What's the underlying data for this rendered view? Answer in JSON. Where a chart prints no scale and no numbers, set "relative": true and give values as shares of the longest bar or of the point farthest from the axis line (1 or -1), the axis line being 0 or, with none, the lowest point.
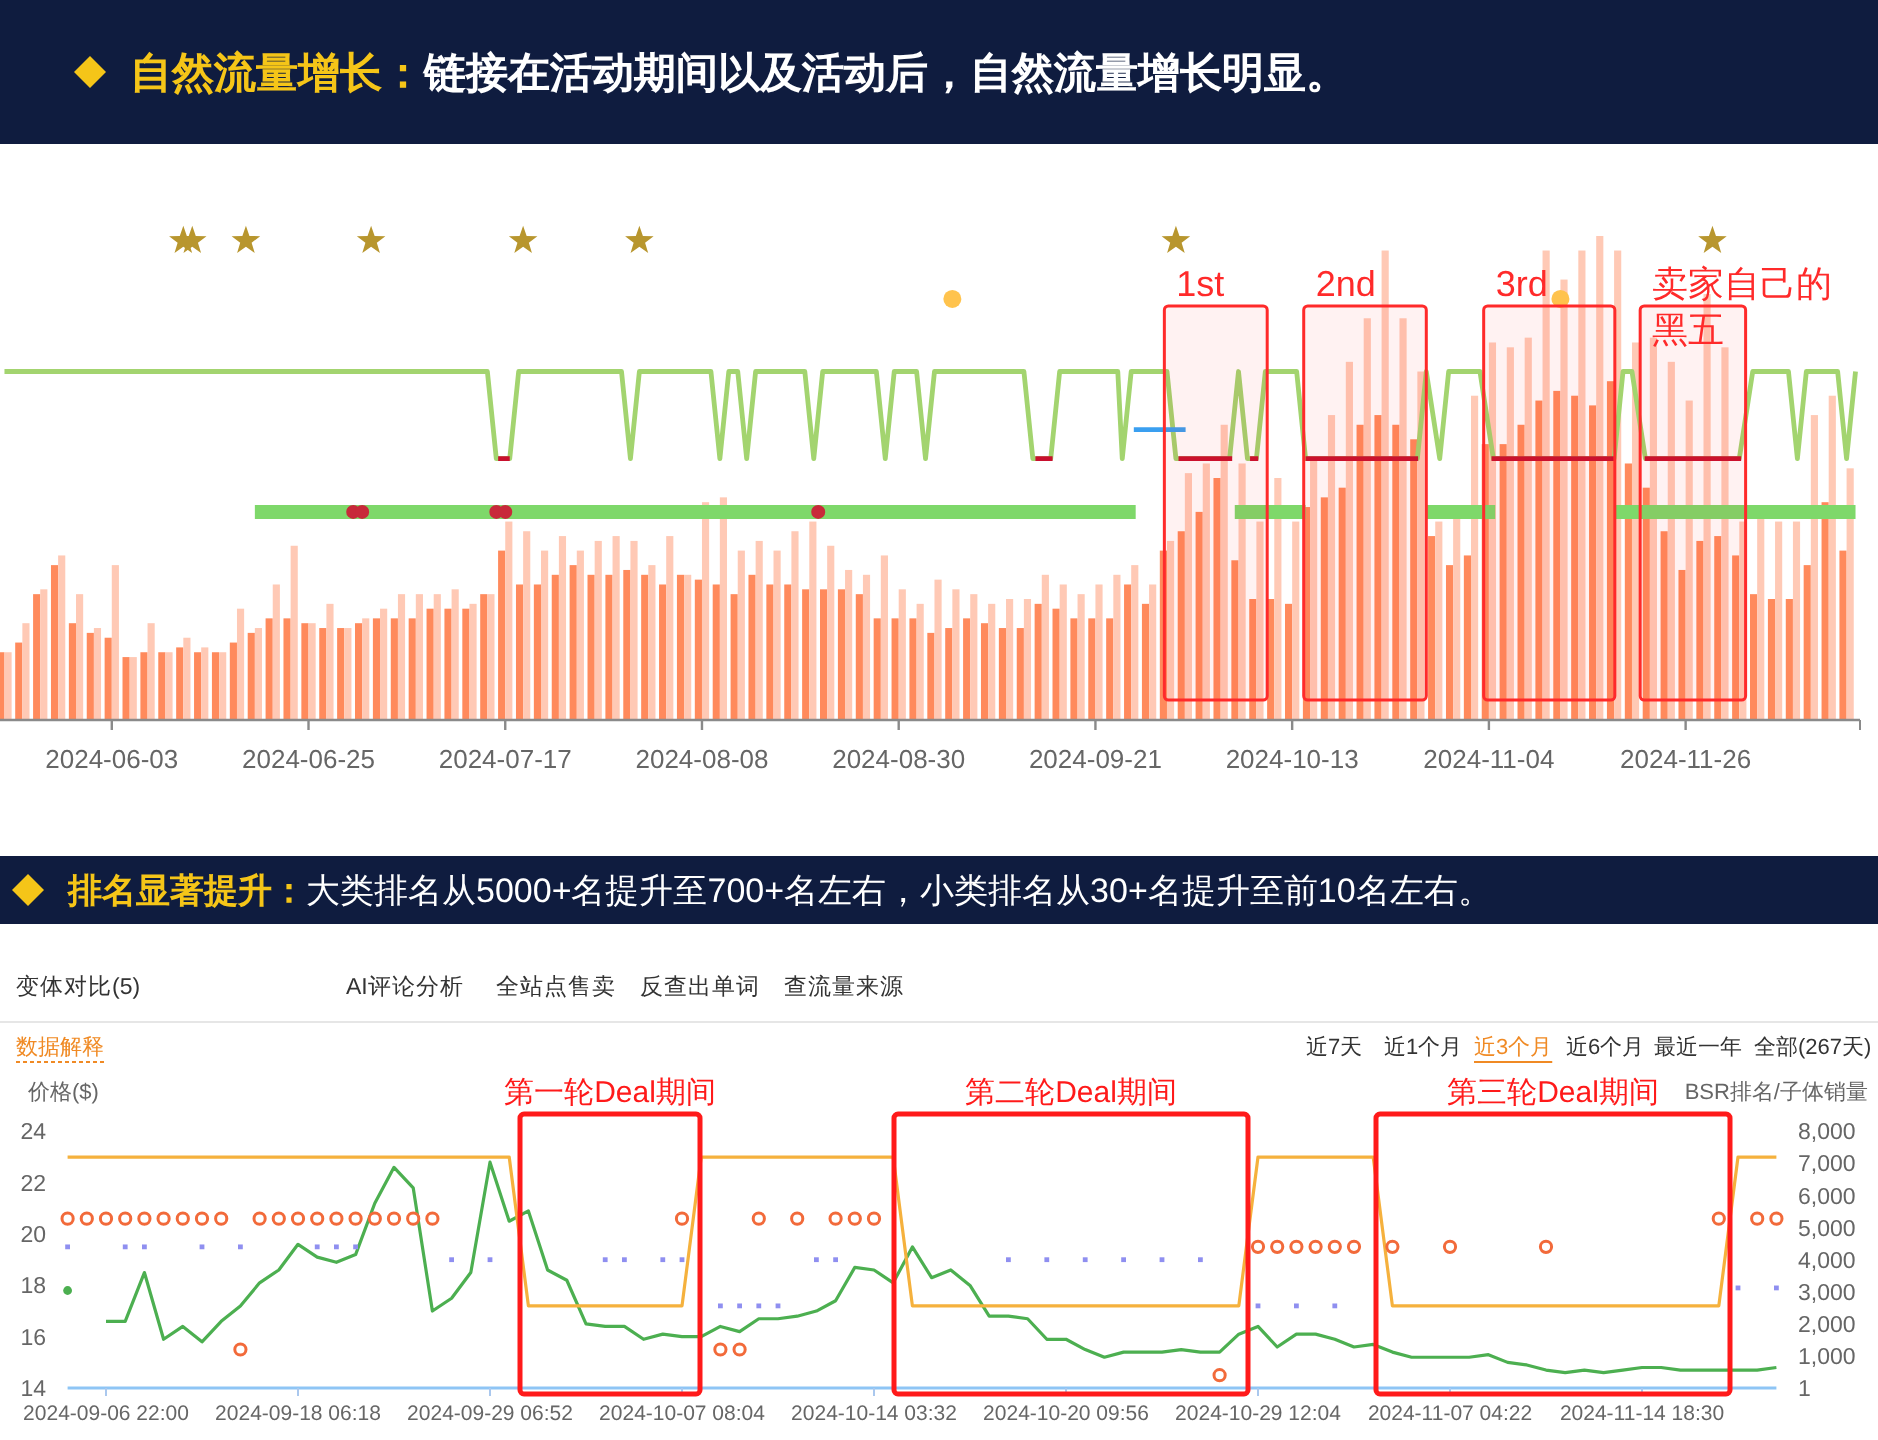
{
  "chart_data": [
    {
      "type": "bar",
      "title": "自然流量增长：",
      "subtitle": "链接在活动期间以及活动后，自然流量增长明显。",
      "relative": true,
      "x": [
        "2024-05-22",
        "2024-05-24",
        "2024-05-26",
        "2024-05-28",
        "2024-05-30",
        "2024-06-01",
        "2024-06-03",
        "2024-06-05",
        "2024-06-07",
        "2024-06-09",
        "2024-06-11",
        "2024-06-13",
        "2024-06-15",
        "2024-06-17",
        "2024-06-19",
        "2024-06-21",
        "2024-06-23",
        "2024-06-25",
        "2024-06-27",
        "2024-06-29",
        "2024-07-01",
        "2024-07-03",
        "2024-07-05",
        "2024-07-07",
        "2024-07-09",
        "2024-07-11",
        "2024-07-13",
        "2024-07-15",
        "2024-07-17",
        "2024-07-19",
        "2024-07-21",
        "2024-07-23",
        "2024-07-25",
        "2024-07-27",
        "2024-07-29",
        "2024-07-31",
        "2024-08-02",
        "2024-08-04",
        "2024-08-06",
        "2024-08-08",
        "2024-08-10",
        "2024-08-12",
        "2024-08-14",
        "2024-08-16",
        "2024-08-18",
        "2024-08-20",
        "2024-08-22",
        "2024-08-24",
        "2024-08-26",
        "2024-08-28",
        "2024-08-30",
        "2024-09-01",
        "2024-09-03",
        "2024-09-05",
        "2024-09-07",
        "2024-09-09",
        "2024-09-11",
        "2024-09-13",
        "2024-09-15",
        "2024-09-17",
        "2024-09-19",
        "2024-09-21",
        "2024-09-23",
        "2024-09-25",
        "2024-09-27",
        "2024-09-29",
        "2024-10-01",
        "2024-10-03",
        "2024-10-05",
        "2024-10-07",
        "2024-10-09",
        "2024-10-11",
        "2024-10-13",
        "2024-10-15",
        "2024-10-17",
        "2024-10-19",
        "2024-10-21",
        "2024-10-23",
        "2024-10-25",
        "2024-10-27",
        "2024-10-29",
        "2024-10-31",
        "2024-11-02",
        "2024-11-04",
        "2024-11-06",
        "2024-11-08",
        "2024-11-10",
        "2024-11-12",
        "2024-11-14",
        "2024-11-16",
        "2024-11-18",
        "2024-11-20",
        "2024-11-22",
        "2024-11-24",
        "2024-11-26",
        "2024-11-28",
        "2024-11-30",
        "2024-12-02",
        "2024-12-04",
        "2024-12-06",
        "2024-12-08",
        "2024-12-10",
        "2024-12-12",
        "2024-12-14"
      ],
      "xlim": [
        "2024-05-21T12:00",
        "2024-12-15T12:00"
      ],
      "xticks": [
        "2024-06-03",
        "2024-06-25",
        "2024-07-17",
        "2024-08-08",
        "2024-08-30",
        "2024-09-21",
        "2024-10-13",
        "2024-11-04",
        "2024-11-26"
      ],
      "series": [
        {
          "color": "#ff8a5c",
          "values": [
            0.14,
            0.16,
            0.26,
            0.32,
            0.2,
            0.18,
            0.17,
            0.13,
            0.14,
            0.14,
            0.15,
            0.14,
            0.14,
            0.16,
            0.18,
            0.21,
            0.21,
            0.2,
            0.19,
            0.19,
            0.2,
            0.21,
            0.21,
            0.21,
            0.23,
            0.23,
            0.23,
            0.26,
            0.35,
            0.28,
            0.28,
            0.3,
            0.32,
            0.3,
            0.3,
            0.31,
            0.3,
            0.28,
            0.3,
            0.29,
            0.28,
            0.26,
            0.3,
            0.28,
            0.28,
            0.27,
            0.27,
            0.27,
            0.26,
            0.21,
            0.21,
            0.21,
            0.18,
            0.19,
            0.21,
            0.2,
            0.19,
            0.19,
            0.24,
            0.23,
            0.21,
            0.21,
            0.21,
            0.28,
            0.24,
            0.35,
            0.39,
            0.43,
            0.5,
            0.33,
            0.25,
            0.25,
            0.24,
            0.44,
            0.46,
            0.48,
            0.61,
            0.63,
            0.61,
            0.58,
            0.38,
            0.32,
            0.34,
            0.57,
            0.57,
            0.61,
            0.66,
            0.68,
            0.67,
            0.65,
            0.7,
            0.53,
            0.48,
            0.39,
            0.31,
            0.37,
            0.38,
            0.34,
            0.26,
            0.25,
            0.25,
            0.32,
            0.45,
            0.35
          ]
        },
        {
          "color": "#ffc9b5",
          "values": [
            0.14,
            0.2,
            0.27,
            0.34,
            0.26,
            0.19,
            0.32,
            0.13,
            0.2,
            0.14,
            0.17,
            0.15,
            0.14,
            0.23,
            0.19,
            0.28,
            0.36,
            0.2,
            0.24,
            0.19,
            0.21,
            0.23,
            0.26,
            0.26,
            0.26,
            0.27,
            0.24,
            0.26,
            0.41,
            0.39,
            0.35,
            0.38,
            0.35,
            0.37,
            0.38,
            0.37,
            0.32,
            0.38,
            0.3,
            0.45,
            0.46,
            0.35,
            0.37,
            0.35,
            0.39,
            0.41,
            0.36,
            0.31,
            0.3,
            0.34,
            0.27,
            0.24,
            0.29,
            0.27,
            0.26,
            0.24,
            0.25,
            0.25,
            0.3,
            0.28,
            0.26,
            0.28,
            0.3,
            0.32,
            0.28,
            0.37,
            0.51,
            0.53,
            0.61,
            0.53,
            0.41,
            0.5,
            0.41,
            0.54,
            0.63,
            0.74,
            0.83,
            0.97,
            0.83,
            0.72,
            0.41,
            0.42,
            0.67,
            0.78,
            0.77,
            0.79,
            0.97,
            0.91,
            0.97,
            1.0,
            0.97,
            0.78,
            0.79,
            0.74,
            0.66,
            0.88,
            0.77,
            0.41,
            0.42,
            0.41,
            0.41,
            0.63,
            0.67,
            0.52
          ]
        },
        {
          "type": "line",
          "color": "#a3d46f",
          "x": [
            "2024-05-22",
            "2024-07-15",
            "2024-07-16",
            "2024-07-17T12:00",
            "2024-07-18T12:00",
            "2024-07-30",
            "2024-07-31",
            "2024-08-01",
            "2024-08-09",
            "2024-08-10",
            "2024-08-11",
            "2024-08-12",
            "2024-08-13",
            "2024-08-14",
            "2024-08-19T12:00",
            "2024-08-20T12:00",
            "2024-08-21T12:00",
            "2024-08-27T12:00",
            "2024-08-28T12:00",
            "2024-08-29T12:00",
            "2024-09-01",
            "2024-09-02",
            "2024-09-03",
            "2024-09-13",
            "2024-09-14",
            "2024-09-16",
            "2024-09-17",
            "2024-09-23T12:00",
            "2024-09-24",
            "2024-09-25",
            "2024-09-29",
            "2024-09-30",
            "2024-10-06",
            "2024-10-07",
            "2024-10-08",
            "2024-10-09",
            "2024-10-10",
            "2024-10-13T12:00",
            "2024-10-14T12:00",
            "2024-10-27",
            "2024-10-28",
            "2024-10-29T12:00",
            "2024-10-30T12:00",
            "2024-11-03",
            "2024-11-04T12:00",
            "2024-11-18",
            "2024-11-19",
            "2024-11-20",
            "2024-11-21T12:00",
            "2024-12-02",
            "2024-12-03T12:00",
            "2024-12-07T12:00",
            "2024-12-08T12:00",
            "2024-12-09T12:00",
            "2024-12-13",
            "2024-12-14",
            "2024-12-15"
          ],
          "values": [
            0.72,
            0.72,
            0.54,
            0.54,
            0.72,
            0.72,
            0.54,
            0.72,
            0.72,
            0.54,
            0.72,
            0.72,
            0.54,
            0.72,
            0.72,
            0.54,
            0.72,
            0.72,
            0.54,
            0.72,
            0.72,
            0.54,
            0.72,
            0.72,
            0.54,
            0.54,
            0.72,
            0.72,
            0.54,
            0.72,
            0.72,
            0.54,
            0.54,
            0.72,
            0.54,
            0.54,
            0.72,
            0.72,
            0.54,
            0.54,
            0.72,
            0.54,
            0.72,
            0.72,
            0.54,
            0.54,
            0.72,
            0.72,
            0.54,
            0.54,
            0.72,
            0.72,
            0.54,
            0.72,
            0.72,
            0.54,
            0.72
          ]
        },
        {
          "type": "line",
          "color": "#7ed86a",
          "x": [
            "2024-06-19",
            "2024-09-25T12:00",
            "2024-10-01",
            "2024-10-06T14:00",
            "2024-10-14T12:00",
            "2024-10-20",
            "2024-10-28",
            "2024-11-04T17:00",
            "2024-11-10",
            "2024-11-18",
            "2024-12-15"
          ],
          "values": [
            0.43,
            0.43,
            null,
            0.43,
            0.43,
            null,
            0.43,
            0.43,
            null,
            0.43,
            0.43
          ]
        },
        {
          "type": "line",
          "color": "#c8102e",
          "x": [
            "2024-07-16T05:00",
            "2024-07-17T12:00",
            "2024-08-01",
            "2024-09-14T07:00",
            "2024-09-16T05:00",
            "2024-09-20",
            "2024-09-30T07:00",
            "2024-10-06T07:00",
            "2024-10-07T12:00",
            "2024-10-08T07:00",
            "2024-10-09T05:00",
            "2024-10-12",
            "2024-10-14T12:00",
            "2024-10-27T02:00",
            "2024-11-01",
            "2024-11-04T07:00",
            "2024-11-18T02:00",
            "2024-11-20",
            "2024-11-21T10:00",
            "2024-12-02T05:00"
          ],
          "values": [
            0.54,
            0.54,
            null,
            0.54,
            0.54,
            null,
            0.54,
            0.54,
            null,
            0.54,
            0.54,
            null,
            0.54,
            0.54,
            null,
            0.54,
            0.54,
            null,
            0.54,
            0.54
          ]
        },
        {
          "type": "line",
          "color": "#3a9ff0",
          "x": [
            "2024-09-25T07:00",
            "2024-10-01T02:00"
          ],
          "values": [
            0.6,
            0.6
          ]
        },
        {
          "type": "scatter",
          "marker": "star",
          "color": "#b8962e",
          "x": [
            "2024-06-11",
            "2024-06-12",
            "2024-06-18",
            "2024-07-02",
            "2024-07-19",
            "2024-08-01",
            "2024-09-30",
            "2024-11-29"
          ],
          "values": [
            0.99,
            0.99,
            0.99,
            0.99,
            0.99,
            0.99,
            0.99,
            0.99
          ]
        },
        {
          "type": "scatter",
          "marker": "circle",
          "color": "#ffc34d",
          "x": [
            "2024-09-05",
            "2024-11-12"
          ],
          "values": [
            0.87,
            0.87
          ]
        },
        {
          "type": "scatter",
          "marker": "circle",
          "color": "#c8293a",
          "x": [
            "2024-06-30",
            "2024-07-01",
            "2024-07-16",
            "2024-07-17",
            "2024-08-21"
          ],
          "values": [
            0.43,
            0.43,
            0.43,
            0.43,
            0.43
          ]
        }
      ],
      "bands": [
        {
          "axis": "x",
          "from": "2024-09-28T17:00",
          "to": "2024-10-10T05:00",
          "label": "1st",
          "color": "#ff2a2a"
        },
        {
          "axis": "x",
          "from": "2024-10-14T07:00",
          "to": "2024-10-28",
          "label": "2nd",
          "color": "#ff2a2a"
        },
        {
          "axis": "x",
          "from": "2024-11-03T10:00",
          "to": "2024-11-18T02:00",
          "label": "3rd",
          "color": "#ff2a2a"
        },
        {
          "axis": "x",
          "from": "2024-11-20T22:00",
          "to": "2024-12-02T17:00",
          "label": "卖家自己的黑五",
          "color": "#ff2a2a"
        }
      ]
    },
    {
      "type": "line",
      "title": "排名显著提升：",
      "subtitle": "大类排名从5000+名提升至700+名左右，小类排名从30+名提升至前10名左右。",
      "ylabel": "价格($)",
      "y2label": "BSR排名/子体销量",
      "categories": [
        null,
        null,
        "2024-09-06 22:00",
        null,
        null,
        null,
        null,
        null,
        null,
        null,
        null,
        null,
        "2024-09-18 06:18",
        null,
        null,
        null,
        null,
        null,
        null,
        null,
        null,
        null,
        "2024-09-29 06:52",
        null,
        null,
        null,
        null,
        null,
        null,
        null,
        null,
        null,
        "2024-10-07 08:04",
        null,
        null,
        null,
        null,
        null,
        null,
        null,
        null,
        null,
        "2024-10-14 03:32",
        null,
        null,
        null,
        null,
        null,
        null,
        null,
        null,
        null,
        "2024-10-20 09:56",
        null,
        null,
        null,
        null,
        null,
        null,
        null,
        null,
        null,
        "2024-10-29 12:04",
        null,
        null,
        null,
        null,
        null,
        null,
        null,
        null,
        null,
        "2024-11-07 04:22",
        null,
        null,
        null,
        null,
        null,
        null,
        null,
        null,
        null,
        "2024-11-14 18:30",
        null,
        null,
        null,
        null,
        null,
        null,
        null
      ],
      "ylim": [
        14,
        24
      ],
      "yticks": [
        14,
        16,
        18,
        20,
        22,
        24
      ],
      "y2lim": [
        1,
        8000
      ],
      "y2ticks": [
        1,
        {
          "value": 1000,
          "label": "1,000"
        },
        {
          "value": 2000,
          "label": "2,000"
        },
        {
          "value": 3000,
          "label": "3,000"
        },
        {
          "value": 4000,
          "label": "4,000"
        },
        {
          "value": 5000,
          "label": "5,000"
        },
        {
          "value": 6000,
          "label": "6,000"
        },
        {
          "value": 7000,
          "label": "7,000"
        },
        {
          "value": 8000,
          "label": "8,000"
        }
      ],
      "series": [
        {
          "axis": "y2",
          "color": "#4caf50",
          "values": [
            3040,
            null,
            2080,
            2080,
            3600,
            1520,
            1920,
            1440,
            2080,
            2560,
            3280,
            3680,
            4480,
            4080,
            3920,
            4160,
            5760,
            6880,
            6240,
            2400,
            2800,
            3600,
            7040,
            5200,
            5520,
            3680,
            3360,
            2000,
            1920,
            1920,
            1520,
            1680,
            1600,
            1600,
            1920,
            1760,
            2160,
            2160,
            2240,
            2400,
            2720,
            3760,
            3680,
            3280,
            4400,
            3440,
            3680,
            3200,
            2240,
            2240,
            2160,
            1520,
            1520,
            1200,
            960,
            1120,
            1120,
            1120,
            1200,
            1120,
            1120,
            1680,
            1920,
            1280,
            1680,
            1680,
            1520,
            1280,
            1360,
            1120,
            960,
            960,
            960,
            960,
            1040,
            800,
            720,
            560,
            480,
            560,
            480,
            560,
            640,
            640,
            560,
            560,
            560,
            560,
            560,
            640
          ]
        },
        {
          "color": "#f5b13d",
          "values": [
            23.0,
            23.0,
            23.0,
            23.0,
            23.0,
            23.0,
            23.0,
            23.0,
            23.0,
            23.0,
            23.0,
            23.0,
            23.0,
            23.0,
            23.0,
            23.0,
            23.0,
            23.0,
            23.0,
            23.0,
            23.0,
            23.0,
            23.0,
            23.0,
            17.2,
            17.2,
            17.2,
            17.2,
            17.2,
            17.2,
            17.2,
            17.2,
            17.2,
            23.0,
            23.0,
            23.0,
            23.0,
            23.0,
            23.0,
            23.0,
            23.0,
            23.0,
            23.0,
            23.0,
            17.2,
            17.2,
            17.2,
            17.2,
            17.2,
            17.2,
            17.2,
            17.2,
            17.2,
            17.2,
            17.2,
            17.2,
            17.2,
            17.2,
            17.2,
            17.2,
            17.2,
            17.2,
            23.0,
            23.0,
            23.0,
            23.0,
            23.0,
            23.0,
            23.0,
            17.2,
            17.2,
            17.2,
            17.2,
            17.2,
            17.2,
            17.2,
            17.2,
            17.2,
            17.2,
            17.2,
            17.2,
            17.2,
            17.2,
            17.2,
            17.2,
            17.2,
            17.2,
            23.0,
            23.0,
            23.0
          ]
        },
        {
          "color": "#8ec5f5",
          "values": [
            14.0,
            14.0,
            14.0,
            14.0,
            14.0,
            14.0,
            14.0,
            14.0,
            14.0,
            14.0,
            14.0,
            14.0,
            14.0,
            14.0,
            14.0,
            14.0,
            14.0,
            14.0,
            14.0,
            14.0,
            14.0,
            14.0,
            14.0,
            14.0,
            14.0,
            14.0,
            14.0,
            14.0,
            14.0,
            14.0,
            14.0,
            14.0,
            14.0,
            14.0,
            14.0,
            14.0,
            14.0,
            14.0,
            14.0,
            14.0,
            14.0,
            14.0,
            14.0,
            14.0,
            14.0,
            14.0,
            14.0,
            14.0,
            14.0,
            14.0,
            14.0,
            14.0,
            14.0,
            14.0,
            14.0,
            14.0,
            14.0,
            14.0,
            14.0,
            14.0,
            14.0,
            14.0,
            14.0,
            14.0,
            14.0,
            14.0,
            14.0,
            14.0,
            14.0,
            14.0,
            14.0,
            14.0,
            14.0,
            14.0,
            14.0,
            14.0,
            14.0,
            14.0,
            14.0,
            14.0,
            14.0,
            14.0,
            14.0,
            14.0,
            14.0,
            14.0,
            14.0,
            14.0,
            14.0,
            14.0
          ]
        },
        {
          "type": "scatter",
          "marker": "circle",
          "color": "#f26a3a",
          "values": [
            20.6,
            20.6,
            20.6,
            20.6,
            20.6,
            20.6,
            20.6,
            20.6,
            20.6,
            15.5,
            20.6,
            20.6,
            20.6,
            20.6,
            20.6,
            20.6,
            20.6,
            20.6,
            20.6,
            20.6,
            null,
            null,
            null,
            null,
            null,
            null,
            null,
            null,
            null,
            null,
            null,
            null,
            20.6,
            null,
            15.5,
            15.5,
            20.6,
            null,
            20.6,
            null,
            20.6,
            20.6,
            20.6,
            null,
            null,
            null,
            null,
            null,
            null,
            null,
            null,
            null,
            null,
            null,
            null,
            null,
            null,
            null,
            null,
            null,
            14.5,
            null,
            19.5,
            19.5,
            19.5,
            19.5,
            19.5,
            19.5,
            null,
            19.5,
            null,
            null,
            19.5,
            null,
            null,
            null,
            null,
            19.5,
            null,
            null,
            null,
            null,
            null,
            null,
            null,
            null,
            20.6,
            null,
            20.6,
            20.6
          ]
        },
        {
          "type": "scatter",
          "marker": "square",
          "color": "#8f8ff0",
          "values": [
            19.5,
            null,
            null,
            19.5,
            19.5,
            null,
            null,
            19.5,
            null,
            19.5,
            null,
            null,
            null,
            19.5,
            19.5,
            19.5,
            null,
            null,
            null,
            null,
            19.0,
            null,
            19.0,
            null,
            null,
            null,
            null,
            null,
            19.0,
            19.0,
            null,
            19.0,
            19.0,
            null,
            17.2,
            17.2,
            17.2,
            17.2,
            null,
            19.0,
            19.0,
            null,
            null,
            null,
            null,
            null,
            null,
            null,
            null,
            19.0,
            null,
            19.0,
            null,
            19.0,
            null,
            19.0,
            null,
            19.0,
            null,
            19.0,
            null,
            null,
            17.2,
            null,
            17.2,
            null,
            17.2,
            null,
            null,
            null,
            null,
            null,
            null,
            null,
            null,
            null,
            null,
            null,
            null,
            null,
            null,
            null,
            null,
            null,
            null,
            null,
            null,
            17.9,
            null,
            17.9
          ]
        }
      ],
      "annotations": [
        "变体对比(5)",
        "AI评论分析",
        "全站点售卖",
        "反查出单词",
        "查流量来源",
        "数据解释",
        "近7天",
        "近1个月",
        "近3个月",
        "近6个月",
        "最近一年",
        "全部(267天)",
        "第一轮Deal期间",
        "第二轮Deal期间",
        "第三轮Deal期间"
      ]
    }
  ]
}
